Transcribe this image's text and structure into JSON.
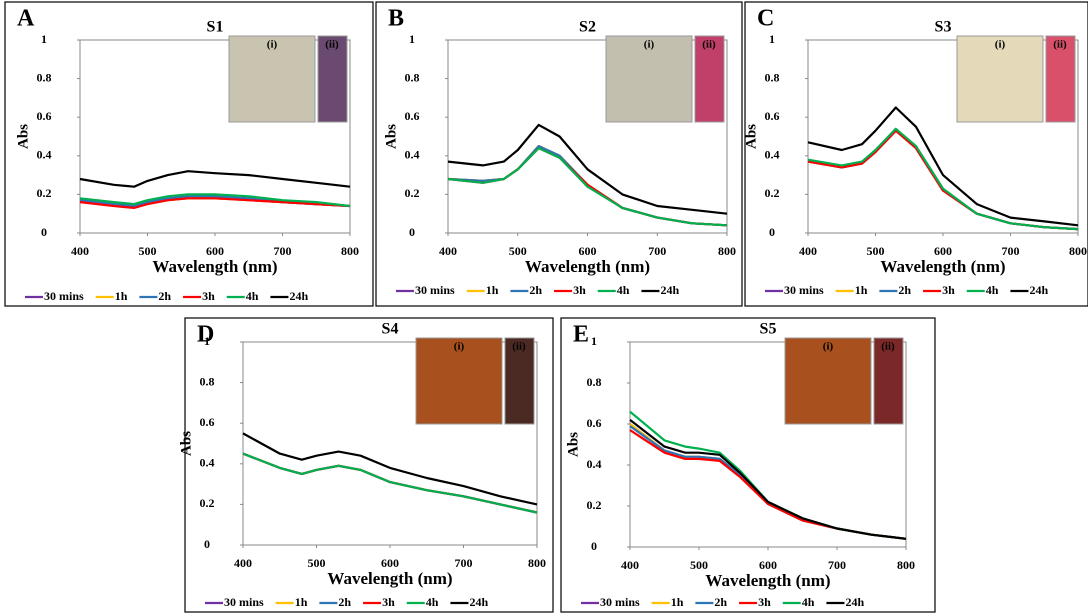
{
  "chart_data": [
    {
      "type": "line",
      "panel_label": "A",
      "title": "S1",
      "y_label": "Abs",
      "x_label": "Wavelength (nm)",
      "inset_labels": [
        "(i)",
        "(ii)"
      ],
      "x": [
        400,
        450,
        480,
        500,
        530,
        560,
        600,
        650,
        700,
        750,
        800
      ],
      "xlim": [
        400,
        800
      ],
      "ylim": [
        0,
        1
      ],
      "xticks": [
        400,
        500,
        600,
        700,
        800
      ],
      "yticks": [
        0,
        0.2,
        0.4,
        0.6,
        0.8,
        1
      ],
      "series": [
        {
          "name": "30 mins",
          "color": "#7030a0",
          "values": [
            0.17,
            0.15,
            0.14,
            0.15,
            0.17,
            0.18,
            0.18,
            0.17,
            0.16,
            0.15,
            0.14
          ]
        },
        {
          "name": "1h",
          "color": "#ffc000",
          "values": [
            0.17,
            0.15,
            0.14,
            0.15,
            0.17,
            0.18,
            0.18,
            0.17,
            0.16,
            0.15,
            0.14
          ]
        },
        {
          "name": "2h",
          "color": "#2e75b6",
          "values": [
            0.17,
            0.15,
            0.14,
            0.16,
            0.18,
            0.19,
            0.19,
            0.18,
            0.16,
            0.15,
            0.14
          ]
        },
        {
          "name": "3h",
          "color": "#ff0000",
          "values": [
            0.16,
            0.14,
            0.13,
            0.15,
            0.17,
            0.18,
            0.18,
            0.17,
            0.16,
            0.15,
            0.14
          ]
        },
        {
          "name": "4h",
          "color": "#00b050",
          "values": [
            0.18,
            0.16,
            0.15,
            0.17,
            0.19,
            0.2,
            0.2,
            0.19,
            0.17,
            0.16,
            0.14
          ]
        },
        {
          "name": "24h",
          "color": "#000000",
          "values": [
            0.28,
            0.25,
            0.24,
            0.27,
            0.3,
            0.32,
            0.31,
            0.3,
            0.28,
            0.26,
            0.24
          ]
        }
      ]
    },
    {
      "type": "line",
      "panel_label": "B",
      "title": "S2",
      "y_label": "Abs",
      "x_label": "Wavelength (nm)",
      "inset_labels": [
        "(i)",
        "(ii)"
      ],
      "x": [
        400,
        450,
        480,
        500,
        530,
        560,
        600,
        650,
        700,
        750,
        800
      ],
      "xlim": [
        400,
        800
      ],
      "ylim": [
        0,
        1
      ],
      "xticks": [
        400,
        500,
        600,
        700,
        800
      ],
      "yticks": [
        0,
        0.2,
        0.4,
        0.6,
        0.8,
        1
      ],
      "series": [
        {
          "name": "30 mins",
          "color": "#7030a0",
          "values": [
            0.28,
            0.27,
            0.28,
            0.33,
            0.45,
            0.4,
            0.25,
            0.13,
            0.08,
            0.05,
            0.04
          ]
        },
        {
          "name": "1h",
          "color": "#ffc000",
          "values": [
            0.28,
            0.27,
            0.28,
            0.33,
            0.45,
            0.4,
            0.25,
            0.13,
            0.08,
            0.05,
            0.04
          ]
        },
        {
          "name": "2h",
          "color": "#2e75b6",
          "values": [
            0.28,
            0.27,
            0.28,
            0.33,
            0.45,
            0.4,
            0.25,
            0.13,
            0.08,
            0.05,
            0.04
          ]
        },
        {
          "name": "3h",
          "color": "#ff0000",
          "values": [
            0.28,
            0.26,
            0.28,
            0.33,
            0.44,
            0.39,
            0.25,
            0.13,
            0.08,
            0.05,
            0.04
          ]
        },
        {
          "name": "4h",
          "color": "#00b050",
          "values": [
            0.28,
            0.26,
            0.28,
            0.33,
            0.44,
            0.39,
            0.24,
            0.13,
            0.08,
            0.05,
            0.04
          ]
        },
        {
          "name": "24h",
          "color": "#000000",
          "values": [
            0.37,
            0.35,
            0.37,
            0.43,
            0.56,
            0.5,
            0.33,
            0.2,
            0.14,
            0.12,
            0.1
          ]
        }
      ]
    },
    {
      "type": "line",
      "panel_label": "C",
      "title": "S3",
      "y_label": "Abs",
      "x_label": "Wavelength (nm)",
      "inset_labels": [
        "(i)",
        "(ii)"
      ],
      "x": [
        400,
        450,
        480,
        500,
        530,
        560,
        600,
        650,
        700,
        750,
        800
      ],
      "xlim": [
        400,
        800
      ],
      "ylim": [
        0,
        1
      ],
      "xticks": [
        400,
        500,
        600,
        700,
        800
      ],
      "yticks": [
        0,
        0.2,
        0.4,
        0.6,
        0.8,
        1
      ],
      "series": [
        {
          "name": "30 mins",
          "color": "#7030a0",
          "values": [
            0.37,
            0.34,
            0.36,
            0.42,
            0.53,
            0.44,
            0.22,
            0.1,
            0.05,
            0.03,
            0.02
          ]
        },
        {
          "name": "1h",
          "color": "#ffc000",
          "values": [
            0.37,
            0.34,
            0.36,
            0.42,
            0.53,
            0.44,
            0.22,
            0.1,
            0.05,
            0.03,
            0.02
          ]
        },
        {
          "name": "2h",
          "color": "#2e75b6",
          "values": [
            0.37,
            0.34,
            0.36,
            0.42,
            0.53,
            0.44,
            0.22,
            0.1,
            0.05,
            0.03,
            0.02
          ]
        },
        {
          "name": "3h",
          "color": "#ff0000",
          "values": [
            0.37,
            0.34,
            0.36,
            0.42,
            0.53,
            0.44,
            0.22,
            0.1,
            0.05,
            0.03,
            0.02
          ]
        },
        {
          "name": "4h",
          "color": "#00b050",
          "values": [
            0.38,
            0.35,
            0.37,
            0.43,
            0.54,
            0.45,
            0.23,
            0.1,
            0.05,
            0.03,
            0.02
          ]
        },
        {
          "name": "24h",
          "color": "#000000",
          "values": [
            0.47,
            0.43,
            0.46,
            0.53,
            0.65,
            0.55,
            0.3,
            0.15,
            0.08,
            0.06,
            0.04
          ]
        }
      ]
    },
    {
      "type": "line",
      "panel_label": "D",
      "title": "S4",
      "y_label": "Abs",
      "x_label": "Wavelength (nm)",
      "inset_labels": [
        "(i)",
        "(ii)"
      ],
      "x": [
        400,
        450,
        480,
        500,
        530,
        560,
        600,
        650,
        700,
        750,
        800
      ],
      "xlim": [
        400,
        800
      ],
      "ylim": [
        0,
        1
      ],
      "xticks": [
        400,
        500,
        600,
        700,
        800
      ],
      "yticks": [
        0,
        0.2,
        0.4,
        0.6,
        0.8,
        1
      ],
      "series": [
        {
          "name": "30 mins",
          "color": "#7030a0",
          "values": [
            0.45,
            0.38,
            0.35,
            0.37,
            0.39,
            0.37,
            0.31,
            0.27,
            0.24,
            0.2,
            0.16
          ]
        },
        {
          "name": "1h",
          "color": "#ffc000",
          "values": [
            0.45,
            0.38,
            0.35,
            0.37,
            0.39,
            0.37,
            0.31,
            0.27,
            0.24,
            0.2,
            0.16
          ]
        },
        {
          "name": "2h",
          "color": "#2e75b6",
          "values": [
            0.45,
            0.38,
            0.35,
            0.37,
            0.39,
            0.37,
            0.31,
            0.27,
            0.24,
            0.2,
            0.16
          ]
        },
        {
          "name": "3h",
          "color": "#ff0000",
          "values": [
            0.45,
            0.38,
            0.35,
            0.37,
            0.39,
            0.37,
            0.31,
            0.27,
            0.24,
            0.2,
            0.16
          ]
        },
        {
          "name": "4h",
          "color": "#00b050",
          "values": [
            0.45,
            0.38,
            0.35,
            0.37,
            0.39,
            0.37,
            0.31,
            0.27,
            0.24,
            0.2,
            0.16
          ]
        },
        {
          "name": "24h",
          "color": "#000000",
          "values": [
            0.55,
            0.45,
            0.42,
            0.44,
            0.46,
            0.44,
            0.38,
            0.33,
            0.29,
            0.24,
            0.2
          ]
        }
      ]
    },
    {
      "type": "line",
      "panel_label": "E",
      "title": "S5",
      "y_label": "Abs",
      "x_label": "Wavelength (nm)",
      "inset_labels": [
        "(i)",
        "(ii)"
      ],
      "x": [
        400,
        450,
        480,
        500,
        530,
        560,
        600,
        650,
        700,
        750,
        800
      ],
      "xlim": [
        400,
        800
      ],
      "ylim": [
        0,
        1
      ],
      "xticks": [
        400,
        500,
        600,
        700,
        800
      ],
      "yticks": [
        0,
        0.2,
        0.4,
        0.6,
        0.8,
        1
      ],
      "series": [
        {
          "name": "30 mins",
          "color": "#7030a0",
          "values": [
            0.6,
            0.47,
            0.44,
            0.44,
            0.43,
            0.35,
            0.21,
            0.13,
            0.09,
            0.06,
            0.04
          ]
        },
        {
          "name": "1h",
          "color": "#ffc000",
          "values": [
            0.6,
            0.47,
            0.44,
            0.44,
            0.43,
            0.35,
            0.21,
            0.13,
            0.09,
            0.06,
            0.04
          ]
        },
        {
          "name": "2h",
          "color": "#2e75b6",
          "values": [
            0.59,
            0.47,
            0.44,
            0.44,
            0.43,
            0.35,
            0.21,
            0.13,
            0.09,
            0.06,
            0.04
          ]
        },
        {
          "name": "3h",
          "color": "#ff0000",
          "values": [
            0.57,
            0.46,
            0.43,
            0.43,
            0.42,
            0.34,
            0.21,
            0.13,
            0.09,
            0.06,
            0.04
          ]
        },
        {
          "name": "4h",
          "color": "#00b050",
          "values": [
            0.66,
            0.52,
            0.49,
            0.48,
            0.46,
            0.37,
            0.22,
            0.14,
            0.09,
            0.06,
            0.04
          ]
        },
        {
          "name": "24h",
          "color": "#000000",
          "values": [
            0.62,
            0.49,
            0.46,
            0.46,
            0.45,
            0.36,
            0.22,
            0.14,
            0.09,
            0.06,
            0.04
          ]
        }
      ]
    }
  ]
}
